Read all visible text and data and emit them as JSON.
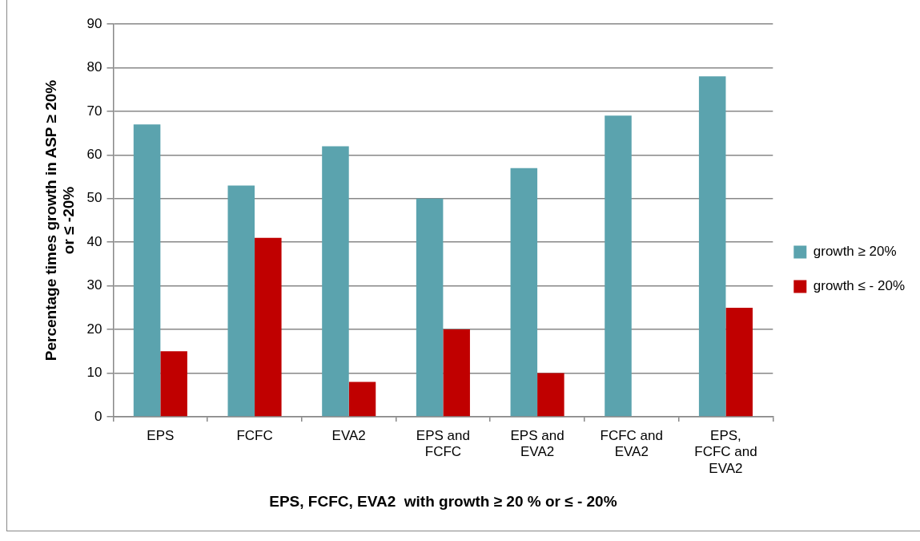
{
  "chart_data": {
    "type": "bar",
    "xlabel": "EPS, FCFC, EVA2  with growth ≥ 20 % or ≤ - 20%",
    "ylabel": "Percentage times growth in ASP ≥ 20% or ≤ -20%",
    "categories": [
      "EPS",
      "FCFC",
      "EVA2",
      "EPS and FCFC",
      "EPS and EVA2",
      "FCFC and EVA2",
      "EPS, FCFC and EVA2"
    ],
    "series": [
      {
        "name": "growth ≥ 20%",
        "color": "#5ba3ae",
        "values": [
          67,
          53,
          62,
          50,
          57,
          69,
          78
        ]
      },
      {
        "name": "growth ≤ - 20%",
        "color": "#c00000",
        "values": [
          15,
          41,
          8,
          20,
          10,
          null,
          25
        ]
      }
    ],
    "ylim": [
      0,
      90
    ],
    "yticks": [
      0,
      10,
      20,
      30,
      40,
      50,
      60,
      70,
      80,
      90
    ],
    "grid": "y",
    "legend": "right"
  }
}
